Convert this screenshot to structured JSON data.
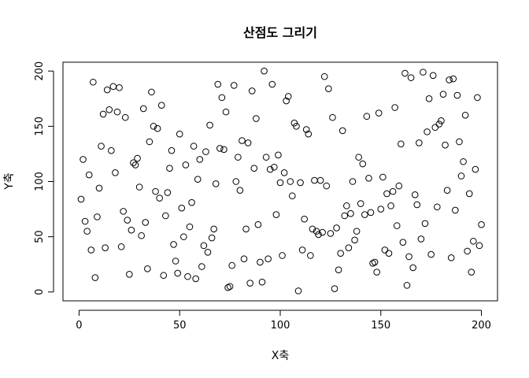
{
  "chart_data": {
    "type": "scatter",
    "title": "산점도 그리기",
    "xlabel": "X축",
    "ylabel": "Y축",
    "xlim": [
      -8,
      208
    ],
    "ylim": [
      -8,
      208
    ],
    "x_ticks": [
      0,
      50,
      100,
      150,
      200
    ],
    "y_ticks": [
      0,
      50,
      100,
      150,
      200
    ],
    "grid": false,
    "legend": "none",
    "marker": "open-circle",
    "color": "#000000",
    "x": [
      1,
      2,
      3,
      4,
      5,
      6,
      7,
      8,
      9,
      10,
      11,
      12,
      13,
      14,
      15,
      16,
      17,
      18,
      19,
      20,
      21,
      22,
      23,
      24,
      25,
      26,
      27,
      28,
      29,
      30,
      31,
      32,
      33,
      34,
      35,
      36,
      37,
      38,
      39,
      40,
      41,
      42,
      43,
      44,
      45,
      46,
      47,
      48,
      49,
      50,
      51,
      52,
      53,
      54,
      55,
      56,
      57,
      58,
      59,
      60,
      61,
      62,
      63,
      64,
      65,
      66,
      67,
      68,
      69,
      70,
      71,
      72,
      73,
      74,
      75,
      76,
      77,
      78,
      79,
      80,
      81,
      82,
      83,
      84,
      85,
      86,
      87,
      88,
      89,
      90,
      91,
      92,
      93,
      94,
      95,
      96,
      97,
      98,
      99,
      100,
      101,
      102,
      103,
      104,
      105,
      106,
      107,
      108,
      109,
      110,
      111,
      112,
      113,
      114,
      115,
      116,
      117,
      118,
      119,
      120,
      121,
      122,
      123,
      124,
      125,
      126,
      127,
      128,
      129,
      130,
      131,
      132,
      133,
      134,
      135,
      136,
      137,
      138,
      139,
      140,
      141,
      142,
      143,
      144,
      145,
      146,
      147,
      148,
      149,
      150,
      151,
      152,
      153,
      154,
      155,
      156,
      157,
      158,
      159,
      160,
      161,
      162,
      163,
      164,
      165,
      166,
      167,
      168,
      169,
      170,
      171,
      172,
      173,
      174,
      175,
      176,
      177,
      178,
      179,
      180,
      181,
      182,
      183,
      184,
      185,
      186,
      187,
      188,
      189,
      190,
      191,
      192,
      193,
      194,
      195,
      196,
      197,
      198,
      199,
      200
    ],
    "y": [
      84,
      120,
      64,
      55,
      106,
      38,
      190,
      13,
      68,
      94,
      132,
      161,
      40,
      183,
      165,
      128,
      186,
      108,
      163,
      185,
      41,
      73,
      158,
      65,
      16,
      56,
      117,
      115,
      121,
      95,
      51,
      166,
      63,
      21,
      136,
      181,
      150,
      91,
      148,
      85,
      169,
      15,
      69,
      90,
      112,
      128,
      43,
      28,
      17,
      143,
      76,
      50,
      115,
      14,
      59,
      81,
      132,
      12,
      102,
      120,
      23,
      42,
      127,
      36,
      151,
      49,
      57,
      98,
      188,
      130,
      176,
      129,
      163,
      4,
      5,
      24,
      187,
      100,
      122,
      92,
      137,
      30,
      57,
      135,
      8,
      182,
      112,
      157,
      61,
      27,
      9,
      200,
      122,
      30,
      111,
      188,
      113,
      70,
      124,
      99,
      33,
      108,
      173,
      177,
      100,
      87,
      153,
      150,
      1,
      99,
      38,
      66,
      147,
      143,
      33,
      57,
      101,
      55,
      52,
      101,
      54,
      195,
      96,
      184,
      53,
      158,
      3,
      58,
      20,
      35,
      146,
      69,
      78,
      40,
      71,
      100,
      47,
      55,
      122,
      80,
      116,
      70,
      159,
      103,
      72,
      26,
      27,
      18,
      162,
      75,
      104,
      38,
      89,
      35,
      78,
      91,
      167,
      60,
      96,
      134,
      45,
      198,
      6,
      32,
      194,
      22,
      88,
      79,
      135,
      48,
      199,
      62,
      145,
      175,
      34,
      196,
      149,
      77,
      152,
      155,
      179,
      133,
      92,
      192,
      31,
      193,
      74,
      178,
      136,
      105,
      118,
      160,
      37,
      89,
      18,
      46,
      111,
      176,
      42,
      61
    ]
  }
}
